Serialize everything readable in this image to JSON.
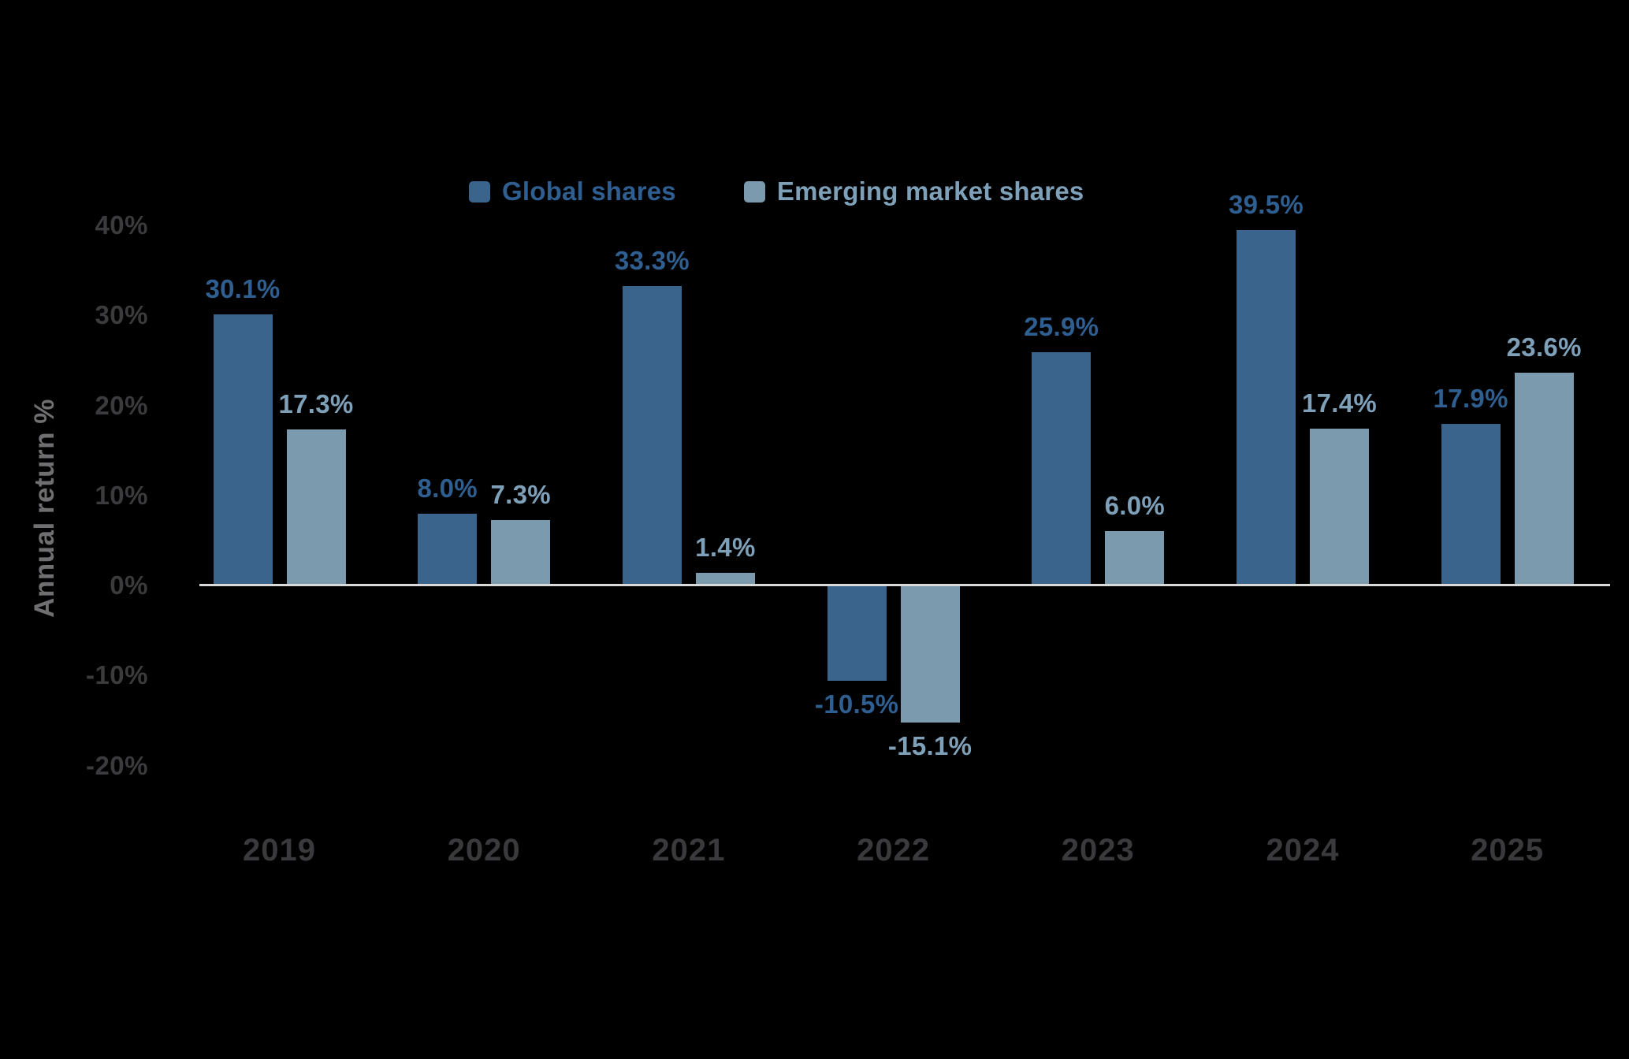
{
  "page": {
    "background": "#000000"
  },
  "zero_line_color": "#D9D9D9",
  "y_axis": {
    "title": "Annual return %",
    "title_color": "#6F6F71",
    "tick_color": "#3B3B3D",
    "ticks": [
      {
        "value": 40,
        "label": "40%"
      },
      {
        "value": 30,
        "label": "30%"
      },
      {
        "value": 20,
        "label": "20%"
      },
      {
        "value": 10,
        "label": "10%"
      },
      {
        "value": 0,
        "label": "0%"
      },
      {
        "value": -10,
        "label": "-10%"
      },
      {
        "value": -20,
        "label": "-20%"
      }
    ]
  },
  "x_axis": {
    "label_color": "#3A3A3C",
    "categories": [
      "2019",
      "2020",
      "2021",
      "2022",
      "2023",
      "2024",
      "2025"
    ]
  },
  "chart_data": {
    "type": "bar",
    "title": "",
    "categories": [
      "2019",
      "2020",
      "2021",
      "2022",
      "2023",
      "2024",
      "2025"
    ],
    "series": [
      {
        "name": "Global shares",
        "color": "#3A648C",
        "label_color": "#2F5F90",
        "values": [
          30.1,
          8.0,
          33.3,
          -10.5,
          25.9,
          39.5,
          17.9
        ],
        "labels": [
          "30.1%",
          "8.0%",
          "33.3%",
          "-10.5%",
          "25.9%",
          "39.5%",
          "17.9%"
        ]
      },
      {
        "name": "Emerging market shares",
        "color": "#7C9AAE",
        "label_color": "#7EA0B8",
        "values": [
          17.3,
          7.3,
          1.4,
          -15.1,
          6.0,
          17.4,
          23.6
        ],
        "labels": [
          "17.3%",
          "7.3%",
          "1.4%",
          "-15.1%",
          "6.0%",
          "17.4%",
          "23.6%"
        ]
      }
    ],
    "xlabel": "",
    "ylabel": "Annual return %",
    "ylim": [
      -20,
      40
    ],
    "grid": false,
    "legend_position": "top-center",
    "value_labels_shown": true
  }
}
